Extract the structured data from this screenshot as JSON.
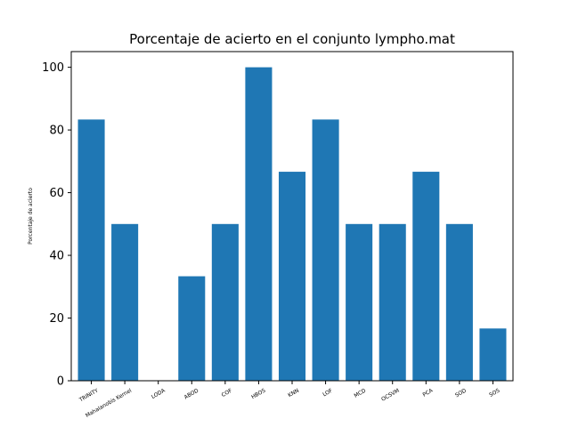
{
  "chart_data": {
    "type": "bar",
    "title": "Porcentaje de acierto en el conjunto lympho.mat",
    "xlabel": "",
    "ylabel": "Porcentaje de acierto",
    "categories": [
      "TRINITY",
      "Mahalanobis Kernel",
      "LODA",
      "ABOD",
      "COF",
      "HBOS",
      "KNN",
      "LOF",
      "MCD",
      "OCSVM",
      "PCA",
      "SOD",
      "SOS"
    ],
    "values": [
      83.33,
      50.0,
      0.0,
      33.33,
      50.0,
      100.0,
      66.67,
      83.33,
      50.0,
      50.0,
      66.67,
      50.0,
      16.67
    ],
    "ylim": [
      0,
      105
    ],
    "yticks": [
      0,
      20,
      40,
      60,
      80,
      100
    ],
    "bar_color": "#1f77b4",
    "grid": false,
    "legend": "none"
  }
}
